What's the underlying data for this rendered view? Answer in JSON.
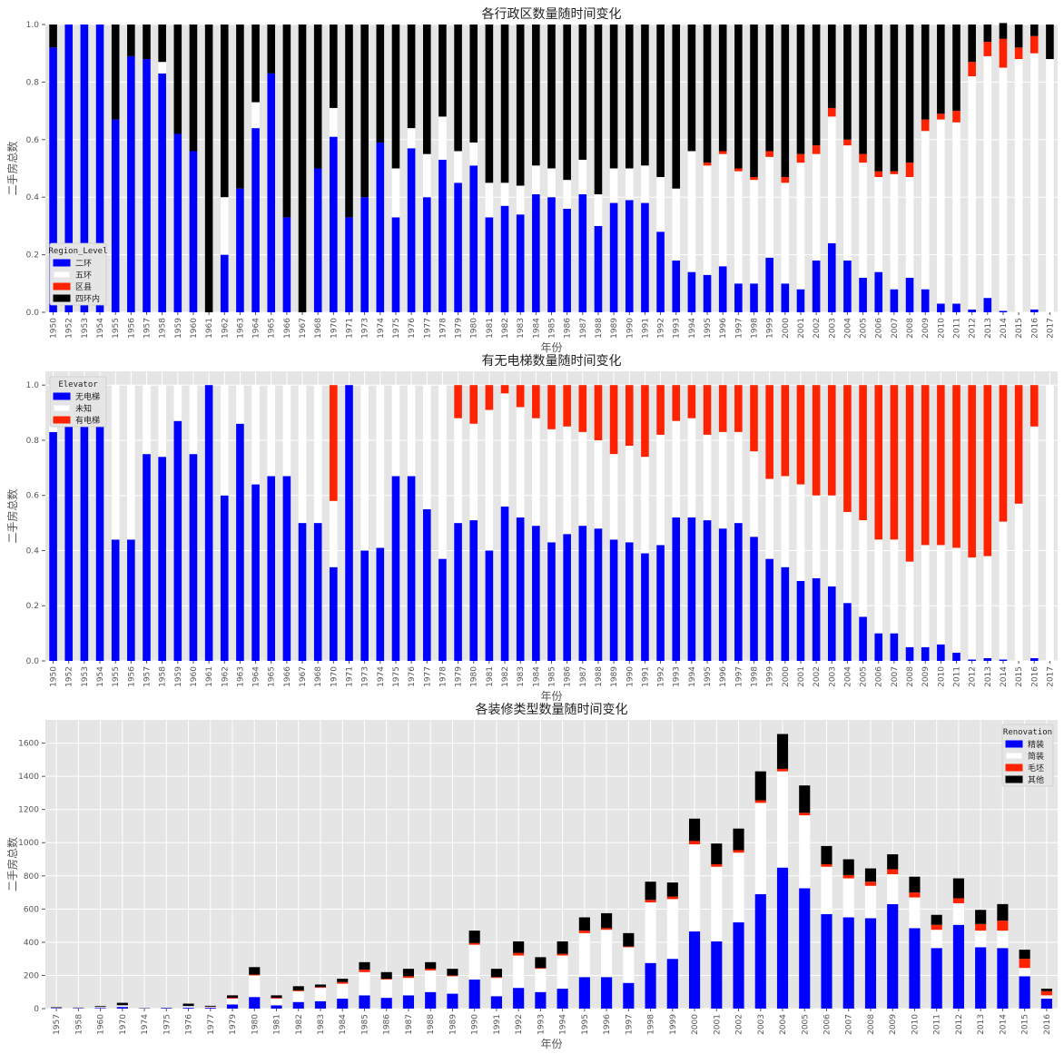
{
  "chart_data": [
    {
      "type": "bar",
      "stacked": true,
      "normalized": true,
      "title": "各行政区数量随时间变化",
      "xlabel": "年份",
      "ylabel": "二手房总数",
      "ylim": [
        0,
        1.0
      ],
      "yticks": [
        "0.0",
        "0.2",
        "0.4",
        "0.6",
        "0.8",
        "1.0"
      ],
      "legend": {
        "title": "Region_Level",
        "position": "lower-left"
      },
      "categories": [
        "1950",
        "1952",
        "1953",
        "1954",
        "1955",
        "1956",
        "1957",
        "1958",
        "1959",
        "1960",
        "1961",
        "1962",
        "1963",
        "1964",
        "1965",
        "1966",
        "1967",
        "1968",
        "1970",
        "1971",
        "1973",
        "1974",
        "1975",
        "1976",
        "1977",
        "1978",
        "1979",
        "1980",
        "1981",
        "1982",
        "1983",
        "1984",
        "1985",
        "1986",
        "1987",
        "1988",
        "1989",
        "1990",
        "1991",
        "1992",
        "1993",
        "1994",
        "1995",
        "1996",
        "1997",
        "1998",
        "1999",
        "2000",
        "2001",
        "2002",
        "2003",
        "2004",
        "2005",
        "2006",
        "2007",
        "2008",
        "2009",
        "2010",
        "2011",
        "2012",
        "2013",
        "2014",
        "2015",
        "2016",
        "2017"
      ],
      "series": [
        {
          "name": "二环",
          "color": "#0000ff",
          "values": [
            0.92,
            1,
            1,
            1,
            0.67,
            0.89,
            0.88,
            0.83,
            0.62,
            0.56,
            0,
            0.2,
            0.43,
            0.64,
            0.83,
            0.33,
            0,
            0.5,
            0.61,
            0.33,
            0.4,
            0.59,
            0.33,
            0.57,
            0.4,
            0.53,
            0.45,
            0.51,
            0.33,
            0.37,
            0.34,
            0.41,
            0.4,
            0.36,
            0.41,
            0.3,
            0.38,
            0.39,
            0.38,
            0.28,
            0.18,
            0.14,
            0.13,
            0.16,
            0.1,
            0.1,
            0.19,
            0.1,
            0.08,
            0.18,
            0.24,
            0.18,
            0.12,
            0.14,
            0.08,
            0.12,
            0.08,
            0.03,
            0.03,
            0.01,
            0.05,
            0.005,
            0,
            0.01,
            0
          ]
        },
        {
          "name": "五环",
          "color": "#ffffff",
          "values": [
            0,
            0,
            0,
            0,
            0,
            0,
            0,
            0.04,
            0,
            0,
            0,
            0.2,
            0,
            0.09,
            0,
            0,
            0,
            0,
            0.1,
            0,
            0,
            0,
            0.17,
            0.07,
            0.15,
            0.15,
            0.11,
            0.08,
            0.12,
            0.08,
            0.1,
            0.1,
            0.1,
            0.1,
            0.12,
            0.11,
            0.12,
            0.11,
            0.13,
            0.19,
            0.25,
            0.42,
            0.38,
            0.39,
            0.39,
            0.36,
            0.35,
            0.35,
            0.44,
            0.37,
            0.44,
            0.4,
            0.4,
            0.33,
            0.4,
            0.35,
            0.55,
            0.64,
            0.63,
            0.81,
            0.84,
            0.845,
            0.88,
            0.89,
            0.88
          ]
        },
        {
          "name": "区县",
          "color": "#ff2200",
          "values": [
            0,
            0,
            0,
            0,
            0,
            0,
            0,
            0,
            0,
            0,
            0,
            0,
            0,
            0,
            0,
            0,
            0,
            0,
            0,
            0,
            0,
            0,
            0,
            0,
            0,
            0,
            0,
            0,
            0,
            0,
            0,
            0,
            0,
            0,
            0,
            0,
            0,
            0,
            0,
            0,
            0,
            0,
            0.01,
            0.01,
            0.01,
            0.01,
            0.02,
            0.02,
            0.03,
            0.03,
            0.03,
            0.02,
            0.03,
            0.02,
            0.01,
            0.05,
            0.04,
            0.02,
            0.04,
            0.05,
            0.05,
            0.1,
            0.04,
            0.06,
            0
          ]
        },
        {
          "name": "四环内",
          "color": "#000000",
          "values": [
            0.08,
            0,
            0,
            0,
            0.33,
            0.11,
            0.12,
            0.13,
            0.38,
            0.44,
            1,
            0.6,
            0.57,
            0.27,
            0.17,
            0.67,
            1,
            0.5,
            0.29,
            0.67,
            0.6,
            0.41,
            0.5,
            0.36,
            0.45,
            0.32,
            0.44,
            0.41,
            0.55,
            0.55,
            0.56,
            0.49,
            0.5,
            0.54,
            0.47,
            0.59,
            0.5,
            0.5,
            0.49,
            0.53,
            0.57,
            0.44,
            0.48,
            0.44,
            0.5,
            0.53,
            0.44,
            0.53,
            0.45,
            0.42,
            0.29,
            0.4,
            0.45,
            0.51,
            0.51,
            0.48,
            0.33,
            0.31,
            0.3,
            0.13,
            0.06,
            0.055,
            0.08,
            0.04,
            0.12
          ]
        }
      ]
    },
    {
      "type": "bar",
      "stacked": true,
      "normalized": true,
      "title": "有无电梯数量随时间变化",
      "xlabel": "年份",
      "ylabel": "二手房总数",
      "ylim": [
        0,
        1.05
      ],
      "yticks": [
        "0.0",
        "0.2",
        "0.4",
        "0.6",
        "0.8",
        "1.0"
      ],
      "legend": {
        "title": "Elevator",
        "position": "upper-left"
      },
      "categories": [
        "1950",
        "1952",
        "1953",
        "1954",
        "1955",
        "1956",
        "1957",
        "1958",
        "1959",
        "1960",
        "1961",
        "1962",
        "1963",
        "1964",
        "1965",
        "1966",
        "1967",
        "1968",
        "1970",
        "1971",
        "1973",
        "1974",
        "1975",
        "1976",
        "1977",
        "1978",
        "1979",
        "1980",
        "1981",
        "1982",
        "1983",
        "1984",
        "1985",
        "1986",
        "1987",
        "1988",
        "1989",
        "1990",
        "1991",
        "1992",
        "1993",
        "1994",
        "1995",
        "1996",
        "1997",
        "1998",
        "1999",
        "2000",
        "2001",
        "2002",
        "2003",
        "2004",
        "2005",
        "2006",
        "2007",
        "2008",
        "2009",
        "2010",
        "2011",
        "2012",
        "2013",
        "2014",
        "2015",
        "2016",
        "2017"
      ],
      "series": [
        {
          "name": "无电梯",
          "color": "#0000ff",
          "values": [
            0.83,
            1,
            1,
            1,
            0.44,
            0.44,
            0.75,
            0.74,
            0.87,
            0.75,
            1,
            0.6,
            0.86,
            0.64,
            0.67,
            0.67,
            0.5,
            0.5,
            0.34,
            1,
            0.4,
            0.41,
            0.67,
            0.67,
            0.55,
            0.37,
            0.5,
            0.51,
            0.4,
            0.56,
            0.52,
            0.49,
            0.43,
            0.46,
            0.49,
            0.48,
            0.44,
            0.43,
            0.39,
            0.42,
            0.52,
            0.52,
            0.51,
            0.48,
            0.5,
            0.45,
            0.37,
            0.34,
            0.29,
            0.3,
            0.27,
            0.21,
            0.16,
            0.1,
            0.1,
            0.05,
            0.05,
            0.06,
            0.03,
            0.005,
            0.01,
            0.005,
            0,
            0.01,
            0
          ]
        },
        {
          "name": "未知",
          "color": "#ffffff",
          "values": [
            0.17,
            0,
            0,
            0,
            0.56,
            0.56,
            0.25,
            0.26,
            0.13,
            0.25,
            0,
            0.4,
            0.14,
            0.36,
            0.33,
            0.33,
            0.5,
            0.5,
            0.24,
            0,
            0.6,
            0.59,
            0.33,
            0.33,
            0.45,
            0.63,
            0.38,
            0.35,
            0.51,
            0.41,
            0.4,
            0.39,
            0.41,
            0.39,
            0.34,
            0.32,
            0.31,
            0.35,
            0.35,
            0.4,
            0.35,
            0.36,
            0.31,
            0.35,
            0.33,
            0.31,
            0.29,
            0.33,
            0.35,
            0.3,
            0.33,
            0.33,
            0.35,
            0.34,
            0.34,
            0.31,
            0.37,
            0.36,
            0.38,
            0.37,
            0.37,
            0.5,
            0.57,
            0.84,
            1
          ]
        },
        {
          "name": "有电梯",
          "color": "#ff2200",
          "values": [
            0,
            0,
            0,
            0,
            0,
            0,
            0,
            0,
            0,
            0,
            0,
            0,
            0,
            0,
            0,
            0,
            0,
            0,
            0.42,
            0,
            0,
            0,
            0,
            0,
            0,
            0,
            0.12,
            0.14,
            0.09,
            0.03,
            0.08,
            0.12,
            0.16,
            0.15,
            0.17,
            0.2,
            0.25,
            0.22,
            0.26,
            0.18,
            0.13,
            0.12,
            0.18,
            0.17,
            0.17,
            0.24,
            0.34,
            0.33,
            0.36,
            0.4,
            0.4,
            0.46,
            0.49,
            0.56,
            0.56,
            0.64,
            0.58,
            0.58,
            0.59,
            0.625,
            0.62,
            0.495,
            0.43,
            0.15,
            0
          ]
        }
      ]
    },
    {
      "type": "bar",
      "stacked": true,
      "title": "各装修类型数量随时间变化",
      "xlabel": "年份",
      "ylabel": "二手房总数",
      "ylim": [
        0,
        1740
      ],
      "yticks": [
        "0",
        "200",
        "400",
        "600",
        "800",
        "1000",
        "1200",
        "1400",
        "1600"
      ],
      "legend": {
        "title": "Renovation",
        "position": "upper-right"
      },
      "categories": [
        "1957",
        "1958",
        "1960",
        "1970",
        "1974",
        "1975",
        "1976",
        "1977",
        "1979",
        "1980",
        "1981",
        "1982",
        "1983",
        "1984",
        "1985",
        "1986",
        "1987",
        "1988",
        "1989",
        "1990",
        "1991",
        "1992",
        "1993",
        "1994",
        "1995",
        "1996",
        "1997",
        "1998",
        "1999",
        "2000",
        "2001",
        "2002",
        "2003",
        "2004",
        "2005",
        "2006",
        "2007",
        "2008",
        "2009",
        "2010",
        "2011",
        "2012",
        "2013",
        "2014",
        "2015",
        "2016"
      ],
      "series": [
        {
          "name": "精装",
          "color": "#0000ff",
          "values": [
            3,
            2,
            4,
            10,
            2,
            3,
            5,
            5,
            25,
            70,
            20,
            40,
            45,
            60,
            80,
            65,
            80,
            100,
            90,
            175,
            75,
            125,
            100,
            120,
            190,
            190,
            155,
            275,
            300,
            465,
            405,
            520,
            690,
            850,
            725,
            570,
            550,
            545,
            630,
            485,
            365,
            505,
            370,
            365,
            195,
            60
          ]
        },
        {
          "name": "简装",
          "color": "#ffffff",
          "values": [
            2,
            2,
            6,
            10,
            2,
            1,
            10,
            5,
            35,
            130,
            40,
            65,
            80,
            90,
            140,
            110,
            105,
            130,
            105,
            210,
            110,
            195,
            140,
            200,
            265,
            285,
            215,
            365,
            360,
            525,
            450,
            420,
            550,
            580,
            440,
            285,
            235,
            195,
            180,
            185,
            110,
            130,
            100,
            105,
            50,
            20
          ]
        },
        {
          "name": "毛坯",
          "color": "#ff2200",
          "values": [
            0,
            0,
            0,
            0,
            0,
            0,
            0,
            2,
            5,
            5,
            5,
            5,
            5,
            10,
            15,
            5,
            10,
            10,
            5,
            10,
            5,
            15,
            5,
            10,
            15,
            10,
            5,
            15,
            15,
            20,
            15,
            15,
            15,
            15,
            15,
            15,
            20,
            25,
            30,
            30,
            30,
            30,
            40,
            60,
            55,
            25
          ]
        },
        {
          "name": "其他",
          "color": "#000000",
          "values": [
            3,
            2,
            5,
            15,
            1,
            1,
            15,
            5,
            15,
            45,
            15,
            25,
            15,
            20,
            45,
            40,
            45,
            40,
            40,
            75,
            50,
            70,
            65,
            75,
            80,
            90,
            80,
            110,
            85,
            135,
            125,
            130,
            175,
            210,
            165,
            110,
            95,
            80,
            90,
            95,
            60,
            120,
            85,
            100,
            55,
            15
          ]
        }
      ]
    }
  ]
}
